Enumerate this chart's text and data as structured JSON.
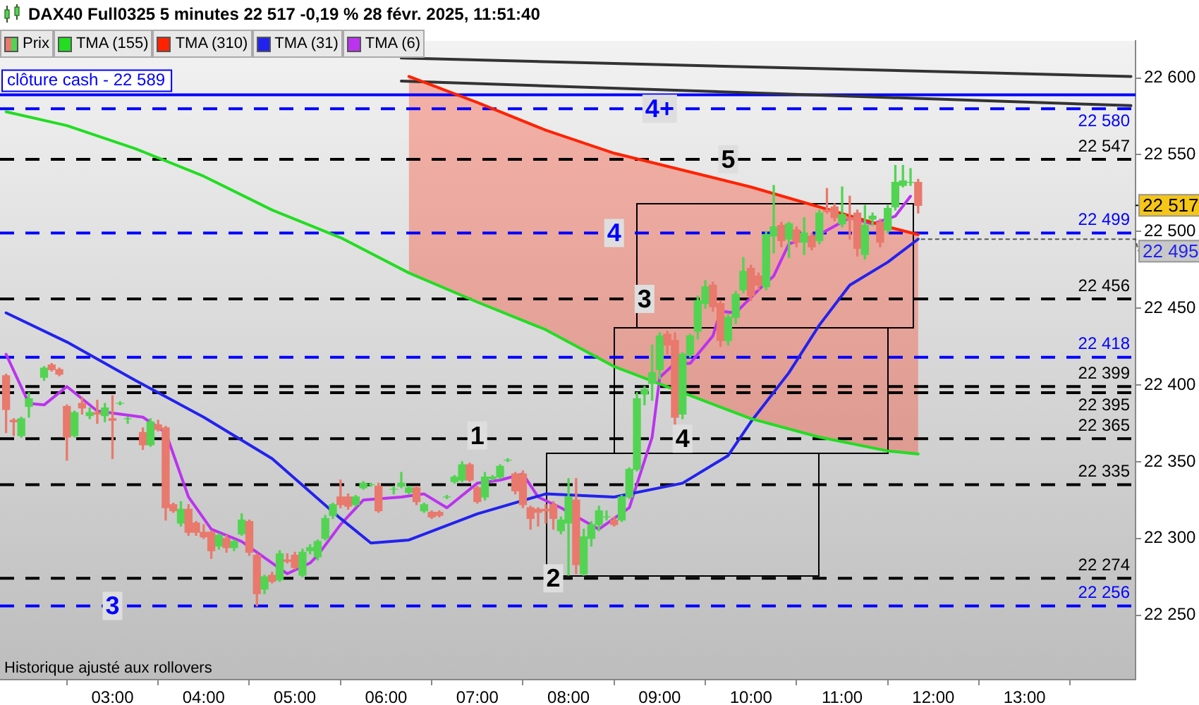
{
  "chart_data": {
    "type": "candlestick",
    "title": "DAX40 Full0325 5 minutes 22 517 -0,19 % 28 févr. 2025, 11:51:40",
    "annotations": [
      "Historique ajusté aux rollovers",
      {
        "text": "4+",
        "x": "2025-02-28T09:00",
        "y": 22580
      },
      {
        "text": "5",
        "x": "2025-02-28T09:45",
        "y": 22547
      },
      {
        "text": "4",
        "x": "2025-02-28T08:30",
        "y": 22499
      },
      {
        "text": "3",
        "x": "2025-02-28T08:50",
        "y": 22456
      },
      {
        "text": "4",
        "x": "2025-02-28T09:15",
        "y": 22365
      },
      {
        "text": "1",
        "x": "2025-02-28T07:00",
        "y": 22367
      },
      {
        "text": "2",
        "x": "2025-02-28T07:50",
        "y": 22274
      },
      {
        "text": "3",
        "x": "2025-02-28T03:00",
        "y": 22256
      },
      "22 517",
      {
        "text": "22 495",
        "x": "2025-02-28T11:50",
        "y": 22495
      }
    ],
    "xlim": [
      "2025-02-28T01:46",
      "2025-02-28T14:13"
    ],
    "xticks": [
      {
        "value": "2025-02-28T03:00",
        "label": "03:00"
      },
      {
        "value": "2025-02-28T04:00",
        "label": "04:00"
      },
      {
        "value": "2025-02-28T05:00",
        "label": "05:00"
      },
      {
        "value": "2025-02-28T06:00",
        "label": "06:00"
      },
      {
        "value": "2025-02-28T07:00",
        "label": "07:00"
      },
      {
        "value": "2025-02-28T08:00",
        "label": "08:00"
      },
      {
        "value": "2025-02-28T09:00",
        "label": "09:00"
      },
      {
        "value": "2025-02-28T10:00",
        "label": "10:00"
      },
      {
        "value": "2025-02-28T11:00",
        "label": "11:00"
      },
      {
        "value": "2025-02-28T12:00",
        "label": "12:00"
      },
      {
        "value": "2025-02-28T13:00",
        "label": "13:00"
      }
    ],
    "ylim": [
      22208,
      22624
    ],
    "yticks": [
      {
        "value": 22250,
        "label": "22 250"
      },
      {
        "value": 22300,
        "label": "22 300"
      },
      {
        "value": 22350,
        "label": "22 350"
      },
      {
        "value": 22400,
        "label": "22 400"
      },
      {
        "value": 22450,
        "label": "22 450"
      },
      {
        "value": 22500,
        "label": "22 500"
      },
      {
        "value": 22550,
        "label": "22 550"
      },
      {
        "value": 22600,
        "label": "22 600"
      }
    ],
    "grid": false,
    "legend": "top left",
    "marker": "none",
    "line_style": "solid",
    "ref_lines": [
      {
        "axis": "y",
        "value": 22589,
        "label": "clôture cash - 22 589",
        "color": "#0000ff",
        "line_style": "solid"
      },
      {
        "axis": "y",
        "value": 22580,
        "label": "22 580",
        "color": "#0000ff",
        "line_style": "dashed"
      },
      {
        "axis": "y",
        "value": 22547,
        "label": "22 547",
        "color": "#000000",
        "line_style": "dashed"
      },
      {
        "axis": "y",
        "value": 22499,
        "label": "22 499",
        "color": "#0000ff",
        "line_style": "dashed"
      },
      {
        "axis": "y",
        "value": 22456,
        "label": "22 456",
        "color": "#000000",
        "line_style": "dashed"
      },
      {
        "axis": "y",
        "value": 22418,
        "label": "22 418",
        "color": "#0000ff",
        "line_style": "dashed"
      },
      {
        "axis": "y",
        "value": 22399,
        "label": "22 399",
        "color": "#000000",
        "line_style": "dashed"
      },
      {
        "axis": "y",
        "value": 22395,
        "label": "22 395",
        "color": "#000000",
        "line_style": "dashed"
      },
      {
        "axis": "y",
        "value": 22365,
        "label": "22 365",
        "color": "#000000",
        "line_style": "dashed"
      },
      {
        "axis": "y",
        "value": 22335,
        "label": "22 335",
        "color": "#000000",
        "line_style": "dashed"
      },
      {
        "axis": "y",
        "value": 22274,
        "label": "22 274",
        "color": "#000000",
        "line_style": "dashed"
      },
      {
        "axis": "y",
        "value": 22256,
        "label": "22 256",
        "color": "#0000ff",
        "line_style": "dashed"
      }
    ],
    "series": [
      {
        "type": "candlestick",
        "name": "Prix",
        "x": [
          "2025-02-28T01:50",
          "2025-02-28T01:55",
          "2025-02-28T02:00",
          "2025-02-28T02:05",
          "2025-02-28T02:15",
          "2025-02-28T02:20",
          "2025-02-28T02:25",
          "2025-02-28T02:30",
          "2025-02-28T02:35",
          "2025-02-28T02:40",
          "2025-02-28T02:45",
          "2025-02-28T02:50",
          "2025-02-28T02:55",
          "2025-02-28T03:00",
          "2025-02-28T03:05",
          "2025-02-28T03:10",
          "2025-02-28T03:20",
          "2025-02-28T03:25",
          "2025-02-28T03:30",
          "2025-02-28T03:35",
          "2025-02-28T03:40",
          "2025-02-28T03:45",
          "2025-02-28T03:50",
          "2025-02-28T03:55",
          "2025-02-28T04:00",
          "2025-02-28T04:05",
          "2025-02-28T04:10",
          "2025-02-28T04:15",
          "2025-02-28T04:20",
          "2025-02-28T04:25",
          "2025-02-28T04:30",
          "2025-02-28T04:35",
          "2025-02-28T04:40",
          "2025-02-28T04:45",
          "2025-02-28T04:50",
          "2025-02-28T04:55",
          "2025-02-28T05:00",
          "2025-02-28T05:05",
          "2025-02-28T05:10",
          "2025-02-28T05:15",
          "2025-02-28T05:20",
          "2025-02-28T05:25",
          "2025-02-28T05:30",
          "2025-02-28T05:35",
          "2025-02-28T05:40",
          "2025-02-28T05:45",
          "2025-02-28T05:50",
          "2025-02-28T05:55",
          "2025-02-28T06:05",
          "2025-02-28T06:10",
          "2025-02-28T06:15",
          "2025-02-28T06:20",
          "2025-02-28T06:25",
          "2025-02-28T06:30",
          "2025-02-28T06:35",
          "2025-02-28T06:40",
          "2025-02-28T06:45",
          "2025-02-28T06:50",
          "2025-02-28T06:55",
          "2025-02-28T07:00",
          "2025-02-28T07:05",
          "2025-02-28T07:10",
          "2025-02-28T07:15",
          "2025-02-28T07:20",
          "2025-02-28T07:25",
          "2025-02-28T07:30",
          "2025-02-28T07:35",
          "2025-02-28T07:40",
          "2025-02-28T07:45",
          "2025-02-28T07:50",
          "2025-02-28T07:55",
          "2025-02-28T08:00",
          "2025-02-28T08:05",
          "2025-02-28T08:10",
          "2025-02-28T08:15",
          "2025-02-28T08:20",
          "2025-02-28T08:25",
          "2025-02-28T08:30",
          "2025-02-28T08:35",
          "2025-02-28T08:40",
          "2025-02-28T08:45",
          "2025-02-28T08:50",
          "2025-02-28T08:55",
          "2025-02-28T09:00",
          "2025-02-28T09:05",
          "2025-02-28T09:10",
          "2025-02-28T09:15",
          "2025-02-28T09:20",
          "2025-02-28T09:25",
          "2025-02-28T09:30",
          "2025-02-28T09:35",
          "2025-02-28T09:40",
          "2025-02-28T09:45",
          "2025-02-28T09:50",
          "2025-02-28T09:55",
          "2025-02-28T10:00",
          "2025-02-28T10:05",
          "2025-02-28T10:10",
          "2025-02-28T10:15",
          "2025-02-28T10:20",
          "2025-02-28T10:25",
          "2025-02-28T10:30",
          "2025-02-28T10:35",
          "2025-02-28T10:40",
          "2025-02-28T10:45",
          "2025-02-28T10:50",
          "2025-02-28T10:55",
          "2025-02-28T11:00",
          "2025-02-28T11:05",
          "2025-02-28T11:10",
          "2025-02-28T11:15",
          "2025-02-28T11:20",
          "2025-02-28T11:25",
          "2025-02-28T11:30",
          "2025-02-28T11:35",
          "2025-02-28T11:40",
          "2025-02-28T11:45",
          "2025-02-28T11:50"
        ],
        "ohlc": [
          [
            22406,
            22407,
            22369,
            22384
          ],
          [
            22377,
            22378,
            22367,
            22376
          ],
          [
            22367,
            22379,
            22366,
            22378
          ],
          [
            22386,
            22395,
            22379,
            22391
          ],
          [
            22405,
            22412,
            22403,
            22411
          ],
          [
            22413,
            22414,
            22409,
            22410
          ],
          [
            22410,
            22411,
            22406,
            22407
          ],
          [
            22386,
            22387,
            22351,
            22366
          ],
          [
            22367,
            22383,
            22366,
            22382
          ],
          [
            22388,
            22392,
            22381,
            22385
          ],
          [
            22380,
            22385,
            22378,
            22382
          ],
          [
            22382,
            22390,
            22375,
            22381
          ],
          [
            22380,
            22388,
            22376,
            22385
          ],
          [
            22378,
            22393,
            22352,
            22377
          ],
          [
            22388,
            22389,
            22387,
            22388
          ],
          [
            22378,
            22379,
            22375,
            22378
          ],
          [
            22369,
            22372,
            22358,
            22361
          ],
          [
            22361,
            22378,
            22360,
            22376
          ],
          [
            22374,
            22377,
            22370,
            22371
          ],
          [
            22372,
            22373,
            22312,
            22320
          ],
          [
            22322,
            22323,
            22317,
            22318
          ],
          [
            22310,
            22324,
            22308,
            22319
          ],
          [
            22319,
            22322,
            22302,
            22304
          ],
          [
            22310,
            22311,
            22302,
            22304
          ],
          [
            22304,
            22309,
            22300,
            22301
          ],
          [
            22304,
            22305,
            22287,
            22292
          ],
          [
            22295,
            22303,
            22293,
            22302
          ],
          [
            22300,
            22302,
            22291,
            22294
          ],
          [
            22294,
            22299,
            22292,
            22298
          ],
          [
            22303,
            22316,
            22302,
            22312
          ],
          [
            22311,
            22312,
            22289,
            22291
          ],
          [
            22289,
            22290,
            22256,
            22264
          ],
          [
            22267,
            22276,
            22264,
            22275
          ],
          [
            22276,
            22278,
            22271,
            22272
          ],
          [
            22273,
            22292,
            22272,
            22290
          ],
          [
            22286,
            22290,
            22284,
            22285
          ],
          [
            22289,
            22291,
            22280,
            22281
          ],
          [
            22276,
            22293,
            22275,
            22291
          ],
          [
            22292,
            22296,
            22290,
            22294
          ],
          [
            22288,
            22299,
            22286,
            22298
          ],
          [
            22300,
            22315,
            22299,
            22313
          ],
          [
            22315,
            22323,
            22313,
            22322
          ],
          [
            22327,
            22338,
            22320,
            22322
          ],
          [
            22327,
            22329,
            22319,
            22321
          ],
          [
            22322,
            22328,
            22321,
            22327
          ],
          [
            22333,
            22337,
            22332,
            22336
          ],
          [
            22335,
            22336,
            22334,
            22335
          ],
          [
            22334,
            22336,
            22317,
            22318
          ],
          [
            22332,
            22334,
            22329,
            22332
          ],
          [
            22334,
            22343,
            22333,
            22336
          ],
          [
            22330,
            22334,
            22329,
            22333
          ],
          [
            22333,
            22334,
            22322,
            22324
          ],
          [
            22318,
            22323,
            22317,
            22322
          ],
          [
            22317,
            22318,
            22313,
            22314
          ],
          [
            22317,
            22318,
            22314,
            22315
          ],
          [
            22327,
            22328,
            22326,
            22327
          ],
          [
            22337,
            22341,
            22336,
            22340
          ],
          [
            22338,
            22350,
            22337,
            22348
          ],
          [
            22348,
            22349,
            22337,
            22338
          ],
          [
            22333,
            22334,
            22323,
            22324
          ],
          [
            22327,
            22343,
            22325,
            22340
          ],
          [
            22339,
            22341,
            22338,
            22340
          ],
          [
            22340,
            22348,
            22339,
            22347
          ],
          [
            22351,
            22352,
            22350,
            22351
          ],
          [
            22342,
            22343,
            22329,
            22331
          ],
          [
            22342,
            22344,
            22320,
            22322
          ],
          [
            22320,
            22321,
            22306,
            22313
          ],
          [
            22319,
            22320,
            22308,
            22317
          ],
          [
            22319,
            22322,
            22310,
            22318
          ],
          [
            22322,
            22324,
            22306,
            22313
          ],
          [
            22305,
            22314,
            22303,
            22312
          ],
          [
            22310,
            22339,
            22276,
            22327
          ],
          [
            22325,
            22339,
            22277,
            22283
          ],
          [
            22277,
            22306,
            22276,
            22301
          ],
          [
            22300,
            22311,
            22295,
            22309
          ],
          [
            22309,
            22321,
            22305,
            22318
          ],
          [
            22314,
            22318,
            22312,
            22314
          ],
          [
            22312,
            22314,
            22308,
            22309
          ],
          [
            22312,
            22328,
            22311,
            22327
          ],
          [
            22327,
            22346,
            22326,
            22345
          ],
          [
            22345,
            22395,
            22344,
            22391
          ],
          [
            22394,
            22399,
            22387,
            22397
          ],
          [
            22401,
            22426,
            22390,
            22408
          ],
          [
            22410,
            22434,
            22404,
            22432
          ],
          [
            22433,
            22435,
            22420,
            22426
          ],
          [
            22429,
            22434,
            22372,
            22379
          ],
          [
            22381,
            22421,
            22378,
            22420
          ],
          [
            22420,
            22433,
            22418,
            22432
          ],
          [
            22435,
            22458,
            22430,
            22455
          ],
          [
            22453,
            22468,
            22450,
            22464
          ],
          [
            22465,
            22467,
            22448,
            22451
          ],
          [
            22453,
            22455,
            22425,
            22429
          ],
          [
            22429,
            22446,
            22426,
            22444
          ],
          [
            22444,
            22461,
            22440,
            22459
          ],
          [
            22462,
            22483,
            22460,
            22474
          ],
          [
            22476,
            22478,
            22455,
            22458
          ],
          [
            22471,
            22473,
            22462,
            22465
          ],
          [
            22464,
            22500,
            22462,
            22498
          ],
          [
            22497,
            22530,
            22486,
            22503
          ],
          [
            22504,
            22506,
            22490,
            22494
          ],
          [
            22495,
            22506,
            22483,
            22505
          ],
          [
            22501,
            22503,
            22490,
            22493
          ],
          [
            22493,
            22509,
            22485,
            22499
          ],
          [
            22497,
            22499,
            22488,
            22490
          ],
          [
            22494,
            22514,
            22492,
            22512
          ],
          [
            22514,
            22528,
            22512,
            22513
          ],
          [
            22516,
            22518,
            22507,
            22509
          ],
          [
            22505,
            22529,
            22503,
            22511
          ],
          [
            22509,
            22523,
            22495,
            22508
          ],
          [
            22512,
            22514,
            22484,
            22489
          ],
          [
            22485,
            22517,
            22482,
            22504
          ],
          [
            22508,
            22512,
            22504,
            22510
          ],
          [
            22506,
            22508,
            22490,
            22493
          ],
          [
            22501,
            22517,
            22499,
            22515
          ],
          [
            22516,
            22543,
            22514,
            22532
          ],
          [
            22530,
            22543,
            22529,
            22533
          ],
          [
            22532,
            22541,
            22530,
            22532
          ],
          [
            22532,
            22534,
            22512,
            22517
          ]
        ],
        "colors": [
          "#e8796c",
          "#e8796c",
          "#52d452",
          "#52d452",
          "#52d452",
          "#e8796c",
          "#e8796c",
          "#e8796c",
          "#52d452",
          "#e8796c",
          "#52d452",
          "#e8796c",
          "#52d452",
          "#e8796c",
          "#52d452",
          "#52d452",
          "#e8796c",
          "#52d452",
          "#e8796c",
          "#e8796c",
          "#e8796c",
          "#52d452",
          "#e8796c",
          "#e8796c",
          "#e8796c",
          "#e8796c",
          "#52d452",
          "#e8796c",
          "#52d452",
          "#52d452",
          "#e8796c",
          "#e8796c",
          "#52d452",
          "#e8796c",
          "#52d452",
          "#e8796c",
          "#e8796c",
          "#52d452",
          "#52d452",
          "#52d452",
          "#52d452",
          "#52d452",
          "#e8796c",
          "#e8796c",
          "#52d452",
          "#52d452",
          "#52d452",
          "#e8796c",
          "#52d452",
          "#52d452",
          "#52d452",
          "#e8796c",
          "#52d452",
          "#e8796c",
          "#e8796c",
          "#52d452",
          "#52d452",
          "#52d452",
          "#e8796c",
          "#e8796c",
          "#52d452",
          "#52d452",
          "#52d452",
          "#52d452",
          "#e8796c",
          "#e8796c",
          "#e8796c",
          "#e8796c",
          "#e8796c",
          "#e8796c",
          "#52d452",
          "#52d452",
          "#e8796c",
          "#52d452",
          "#52d452",
          "#52d452",
          "#52d452",
          "#e8796c",
          "#52d452",
          "#52d452",
          "#52d452",
          "#52d452",
          "#52d452",
          "#52d452",
          "#e8796c",
          "#e8796c",
          "#52d452",
          "#52d452",
          "#52d452",
          "#52d452",
          "#e8796c",
          "#e8796c",
          "#52d452",
          "#52d452",
          "#52d452",
          "#e8796c",
          "#e8796c",
          "#52d452",
          "#52d452",
          "#e8796c",
          "#52d452",
          "#e8796c",
          "#52d452",
          "#e8796c",
          "#52d452",
          "#e8796c",
          "#e8796c",
          "#52d452",
          "#e8796c",
          "#e8796c",
          "#52d452",
          "#52d452",
          "#e8796c",
          "#52d452",
          "#52d452",
          "#52d452",
          "#52d452",
          "#e8796c"
        ]
      },
      {
        "type": "line",
        "name": "TMA (155)",
        "color": "#22dd22",
        "x": [
          "2025-02-28T01:50",
          "2025-02-28T02:30",
          "2025-02-28T03:15",
          "2025-02-28T04:00",
          "2025-02-28T04:45",
          "2025-02-28T05:30",
          "2025-02-28T06:15",
          "2025-02-28T07:00",
          "2025-02-28T07:45",
          "2025-02-28T08:30",
          "2025-02-28T09:15",
          "2025-02-28T10:00",
          "2025-02-28T10:45",
          "2025-02-28T11:30",
          "2025-02-28T11:50"
        ],
        "values": [
          22578,
          22569,
          22554,
          22536,
          22514,
          22496,
          22473,
          22454,
          22436,
          22412,
          22395,
          22378,
          22366,
          22357,
          22355
        ]
      },
      {
        "type": "line",
        "name": "TMA (310)",
        "color": "#ff2200",
        "x": [
          "2025-02-28T06:15",
          "2025-02-28T07:00",
          "2025-02-28T07:45",
          "2025-02-28T08:30",
          "2025-02-28T09:15",
          "2025-02-28T10:00",
          "2025-02-28T10:45",
          "2025-02-28T11:30",
          "2025-02-28T11:50"
        ],
        "values": [
          22601,
          22584,
          22566,
          22551,
          22540,
          22529,
          22516,
          22503,
          22498
        ]
      },
      {
        "type": "line",
        "name": "TMA (31)",
        "color": "#2222ee",
        "x": [
          "2025-02-28T01:50",
          "2025-02-28T02:30",
          "2025-02-28T03:15",
          "2025-02-28T04:00",
          "2025-02-28T04:45",
          "2025-02-28T05:30",
          "2025-02-28T05:50",
          "2025-02-28T06:15",
          "2025-02-28T07:00",
          "2025-02-28T07:45",
          "2025-02-28T08:30",
          "2025-02-28T09:15",
          "2025-02-28T09:45",
          "2025-02-28T10:00",
          "2025-02-28T10:25",
          "2025-02-28T10:45",
          "2025-02-28T11:05",
          "2025-02-28T11:30",
          "2025-02-28T11:50"
        ],
        "values": [
          22447,
          22428,
          22403,
          22379,
          22352,
          22313,
          22297,
          22299,
          22316,
          22329,
          22327,
          22336,
          22354,
          22376,
          22408,
          22439,
          22465,
          22480,
          22495
        ]
      },
      {
        "type": "line",
        "name": "TMA (6)",
        "color": "#bb33ee",
        "x": [
          "2025-02-28T01:50",
          "2025-02-28T02:05",
          "2025-02-28T02:15",
          "2025-02-28T02:30",
          "2025-02-28T02:50",
          "2025-02-28T03:20",
          "2025-02-28T03:35",
          "2025-02-28T03:50",
          "2025-02-28T04:05",
          "2025-02-28T04:25",
          "2025-02-28T04:55",
          "2025-02-28T05:10",
          "2025-02-28T05:15",
          "2025-02-28T05:30",
          "2025-02-28T05:45",
          "2025-02-28T06:10",
          "2025-02-28T06:25",
          "2025-02-28T06:40",
          "2025-02-28T07:00",
          "2025-02-28T07:15",
          "2025-02-28T07:30",
          "2025-02-28T07:40",
          "2025-02-28T07:55",
          "2025-02-28T08:20",
          "2025-02-28T08:40",
          "2025-02-28T08:55",
          "2025-02-28T09:00",
          "2025-02-28T09:10",
          "2025-02-28T09:20",
          "2025-02-28T09:35",
          "2025-02-28T09:40",
          "2025-02-28T09:50",
          "2025-02-28T10:05",
          "2025-02-28T10:15",
          "2025-02-28T10:25",
          "2025-02-28T10:45",
          "2025-02-28T11:05",
          "2025-02-28T11:20",
          "2025-02-28T11:35",
          "2025-02-28T11:45"
        ],
        "values": [
          22420,
          22388,
          22387,
          22399,
          22383,
          22379,
          22369,
          22327,
          22306,
          22298,
          22277,
          22284,
          22289,
          22309,
          22325,
          22327,
          22329,
          22320,
          22336,
          22338,
          22342,
          22327,
          22320,
          22306,
          22320,
          22366,
          22405,
          22414,
          22414,
          22432,
          22448,
          22447,
          22462,
          22471,
          22492,
          22498,
          22509,
          22505,
          22510,
          22523
        ]
      },
      {
        "type": "line",
        "color": "#333333",
        "x": [
          "2025-02-28T06:10",
          "2025-02-28T14:10"
        ],
        "values": [
          22613,
          22601
        ]
      },
      {
        "type": "line",
        "color": "#333333",
        "x": [
          "2025-02-28T06:10",
          "2025-02-28T14:10"
        ],
        "values": [
          22598,
          22582
        ]
      }
    ]
  }
}
